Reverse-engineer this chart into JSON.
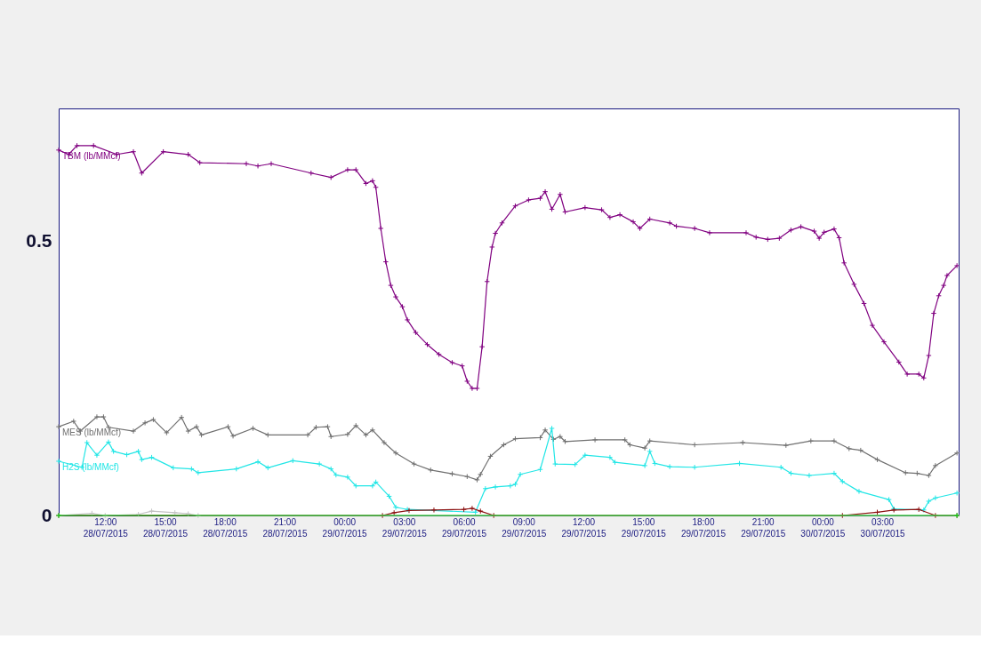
{
  "chart_data": {
    "type": "line",
    "marker": "cross",
    "line_style": "solid",
    "xlim": [
      "2015-07-28T09:40",
      "2015-07-30T06:50"
    ],
    "ylim": [
      0,
      0.743
    ],
    "yticks": [
      0,
      0.5
    ],
    "xticks": [
      {
        "value": "2015-07-28T12:00",
        "label": "12:00 28/07/2015"
      },
      {
        "value": "2015-07-28T15:00",
        "label": "15:00 28/07/2015"
      },
      {
        "value": "2015-07-28T18:00",
        "label": "18:00 28/07/2015"
      },
      {
        "value": "2015-07-28T21:00",
        "label": "21:00 28/07/2015"
      },
      {
        "value": "2015-07-29T00:00",
        "label": "00:00 29/07/2015"
      },
      {
        "value": "2015-07-29T03:00",
        "label": "03:00 29/07/2015"
      },
      {
        "value": "2015-07-29T06:00",
        "label": "06:00 29/07/2015"
      },
      {
        "value": "2015-07-29T09:00",
        "label": "09:00 29/07/2015"
      },
      {
        "value": "2015-07-29T12:00",
        "label": "12:00 29/07/2015"
      },
      {
        "value": "2015-07-29T15:00",
        "label": "15:00 29/07/2015"
      },
      {
        "value": "2015-07-29T18:00",
        "label": "18:00 29/07/2015"
      },
      {
        "value": "2015-07-29T21:00",
        "label": "21:00 29/07/2015"
      },
      {
        "value": "2015-07-30T00:00",
        "label": "00:00 30/07/2015"
      },
      {
        "value": "2015-07-30T03:00",
        "label": "03:00 30/07/2015"
      }
    ],
    "series": [
      {
        "name": "TBM (lb/MMcf)",
        "color": "#800080",
        "x": [
          "2015-07-28T09:40",
          "2015-07-28T10:10",
          "2015-07-28T10:35",
          "2015-07-28T11:25",
          "2015-07-28T12:35",
          "2015-07-28T13:25",
          "2015-07-28T13:50",
          "2015-07-28T14:55",
          "2015-07-28T16:10",
          "2015-07-28T16:45",
          "2015-07-28T19:05",
          "2015-07-28T19:40",
          "2015-07-28T20:20",
          "2015-07-28T22:20",
          "2015-07-28T23:20",
          "2015-07-29T00:10",
          "2015-07-29T00:35",
          "2015-07-29T01:05",
          "2015-07-29T01:25",
          "2015-07-29T01:35",
          "2015-07-29T01:50",
          "2015-07-29T02:05",
          "2015-07-29T02:20",
          "2015-07-29T02:35",
          "2015-07-29T02:55",
          "2015-07-29T03:10",
          "2015-07-29T03:35",
          "2015-07-29T04:10",
          "2015-07-29T04:45",
          "2015-07-29T05:25",
          "2015-07-29T05:55",
          "2015-07-29T06:10",
          "2015-07-29T06:25",
          "2015-07-29T06:40",
          "2015-07-29T06:55",
          "2015-07-29T07:10",
          "2015-07-29T07:25",
          "2015-07-29T07:35",
          "2015-07-29T07:55",
          "2015-07-29T08:35",
          "2015-07-29T09:15",
          "2015-07-29T09:50",
          "2015-07-29T10:05",
          "2015-07-29T10:25",
          "2015-07-29T10:50",
          "2015-07-29T11:05",
          "2015-07-29T12:05",
          "2015-07-29T12:55",
          "2015-07-29T13:20",
          "2015-07-29T13:50",
          "2015-07-29T14:30",
          "2015-07-29T14:50",
          "2015-07-29T15:20",
          "2015-07-29T16:20",
          "2015-07-29T16:40",
          "2015-07-29T17:35",
          "2015-07-29T18:20",
          "2015-07-29T20:10",
          "2015-07-29T20:40",
          "2015-07-29T21:15",
          "2015-07-29T21:50",
          "2015-07-29T22:25",
          "2015-07-29T22:55",
          "2015-07-29T23:35",
          "2015-07-29T23:50",
          "2015-07-30T00:05",
          "2015-07-30T00:35",
          "2015-07-30T00:50",
          "2015-07-30T01:05",
          "2015-07-30T01:35",
          "2015-07-30T02:05",
          "2015-07-30T02:30",
          "2015-07-30T03:05",
          "2015-07-30T03:50",
          "2015-07-30T04:15",
          "2015-07-30T04:50",
          "2015-07-30T05:05",
          "2015-07-30T05:20",
          "2015-07-30T05:35",
          "2015-07-30T05:50",
          "2015-07-30T06:05",
          "2015-07-30T06:15",
          "2015-07-30T06:45"
        ],
        "values": [
          0.667,
          0.659,
          0.675,
          0.675,
          0.659,
          0.664,
          0.625,
          0.664,
          0.659,
          0.644,
          0.642,
          0.638,
          0.642,
          0.625,
          0.617,
          0.631,
          0.631,
          0.606,
          0.611,
          0.599,
          0.524,
          0.463,
          0.42,
          0.399,
          0.381,
          0.357,
          0.334,
          0.312,
          0.294,
          0.279,
          0.273,
          0.245,
          0.232,
          0.232,
          0.308,
          0.427,
          0.49,
          0.515,
          0.534,
          0.565,
          0.576,
          0.579,
          0.591,
          0.559,
          0.586,
          0.554,
          0.562,
          0.558,
          0.544,
          0.549,
          0.536,
          0.524,
          0.541,
          0.534,
          0.528,
          0.524,
          0.516,
          0.516,
          0.508,
          0.504,
          0.506,
          0.521,
          0.527,
          0.519,
          0.506,
          0.517,
          0.523,
          0.507,
          0.461,
          0.422,
          0.387,
          0.347,
          0.317,
          0.28,
          0.258,
          0.258,
          0.251,
          0.292,
          0.369,
          0.401,
          0.42,
          0.438,
          0.456
        ]
      },
      {
        "name": "MES (lb/MMcf)",
        "color": "#707070",
        "x": [
          "2015-07-28T09:40",
          "2015-07-28T10:25",
          "2015-07-28T10:45",
          "2015-07-28T11:35",
          "2015-07-28T11:55",
          "2015-07-28T12:10",
          "2015-07-28T13:25",
          "2015-07-28T14:00",
          "2015-07-28T14:25",
          "2015-07-28T15:05",
          "2015-07-28T15:50",
          "2015-07-28T16:10",
          "2015-07-28T16:35",
          "2015-07-28T16:50",
          "2015-07-28T18:10",
          "2015-07-28T18:25",
          "2015-07-28T19:25",
          "2015-07-28T20:10",
          "2015-07-28T22:10",
          "2015-07-28T22:35",
          "2015-07-28T23:10",
          "2015-07-28T23:20",
          "2015-07-29T00:10",
          "2015-07-29T00:35",
          "2015-07-29T01:05",
          "2015-07-29T01:25",
          "2015-07-29T02:00",
          "2015-07-29T02:35",
          "2015-07-29T03:30",
          "2015-07-29T04:20",
          "2015-07-29T05:25",
          "2015-07-29T06:10",
          "2015-07-29T06:40",
          "2015-07-29T06:50",
          "2015-07-29T07:20",
          "2015-07-29T08:00",
          "2015-07-29T08:35",
          "2015-07-29T09:50",
          "2015-07-29T10:05",
          "2015-07-29T10:30",
          "2015-07-29T10:50",
          "2015-07-29T11:05",
          "2015-07-29T12:35",
          "2015-07-29T14:05",
          "2015-07-29T14:20",
          "2015-07-29T15:05",
          "2015-07-29T15:20",
          "2015-07-29T17:35",
          "2015-07-29T20:00",
          "2015-07-29T22:10",
          "2015-07-29T23:25",
          "2015-07-30T00:35",
          "2015-07-30T01:20",
          "2015-07-30T01:55",
          "2015-07-30T02:45",
          "2015-07-30T04:10",
          "2015-07-30T04:45",
          "2015-07-30T05:20",
          "2015-07-30T05:40",
          "2015-07-30T06:45"
        ],
        "values": [
          0.162,
          0.172,
          0.154,
          0.18,
          0.18,
          0.161,
          0.154,
          0.169,
          0.175,
          0.151,
          0.179,
          0.154,
          0.162,
          0.147,
          0.162,
          0.145,
          0.159,
          0.147,
          0.147,
          0.161,
          0.162,
          0.144,
          0.148,
          0.164,
          0.147,
          0.156,
          0.133,
          0.114,
          0.094,
          0.083,
          0.076,
          0.071,
          0.065,
          0.075,
          0.108,
          0.129,
          0.14,
          0.142,
          0.156,
          0.139,
          0.144,
          0.135,
          0.138,
          0.138,
          0.129,
          0.123,
          0.136,
          0.129,
          0.133,
          0.128,
          0.136,
          0.136,
          0.122,
          0.119,
          0.102,
          0.078,
          0.077,
          0.073,
          0.091,
          0.114
        ]
      },
      {
        "name": "H2S (lb/MMcf)",
        "color": "#22e6e6",
        "x": [
          "2015-07-28T09:40",
          "2015-07-28T10:50",
          "2015-07-28T11:05",
          "2015-07-28T11:35",
          "2015-07-28T12:10",
          "2015-07-28T12:25",
          "2015-07-28T13:05",
          "2015-07-28T13:40",
          "2015-07-28T13:50",
          "2015-07-28T14:20",
          "2015-07-28T15:25",
          "2015-07-28T16:20",
          "2015-07-28T16:40",
          "2015-07-28T18:35",
          "2015-07-28T19:40",
          "2015-07-28T20:10",
          "2015-07-28T21:25",
          "2015-07-28T22:45",
          "2015-07-28T23:20",
          "2015-07-28T23:35",
          "2015-07-29T00:10",
          "2015-07-29T00:35",
          "2015-07-29T01:25",
          "2015-07-29T01:35",
          "2015-07-29T02:15",
          "2015-07-29T02:35",
          "2015-07-29T03:10",
          "2015-07-29T06:35",
          "2015-07-29T07:05",
          "2015-07-29T07:35",
          "2015-07-29T08:20",
          "2015-07-29T08:35",
          "2015-07-29T08:50",
          "2015-07-29T09:50",
          "2015-07-29T10:25",
          "2015-07-29T10:35",
          "2015-07-29T11:35",
          "2015-07-29T12:05",
          "2015-07-29T13:20",
          "2015-07-29T13:35",
          "2015-07-29T15:05",
          "2015-07-29T15:20",
          "2015-07-29T15:35",
          "2015-07-29T16:20",
          "2015-07-29T17:35",
          "2015-07-29T19:50",
          "2015-07-29T21:55",
          "2015-07-29T22:25",
          "2015-07-29T23:20",
          "2015-07-30T00:35",
          "2015-07-30T01:00",
          "2015-07-30T01:50",
          "2015-07-30T03:20",
          "2015-07-30T03:35",
          "2015-07-30T05:05",
          "2015-07-30T05:20",
          "2015-07-30T05:40",
          "2015-07-30T06:45"
        ],
        "values": [
          0.099,
          0.088,
          0.133,
          0.11,
          0.134,
          0.117,
          0.111,
          0.117,
          0.102,
          0.106,
          0.087,
          0.085,
          0.078,
          0.085,
          0.098,
          0.087,
          0.1,
          0.094,
          0.085,
          0.074,
          0.07,
          0.054,
          0.054,
          0.061,
          0.035,
          0.015,
          0.011,
          0.006,
          0.049,
          0.052,
          0.054,
          0.057,
          0.075,
          0.084,
          0.159,
          0.094,
          0.093,
          0.11,
          0.106,
          0.097,
          0.091,
          0.117,
          0.095,
          0.089,
          0.088,
          0.095,
          0.088,
          0.077,
          0.073,
          0.077,
          0.062,
          0.044,
          0.029,
          0.012,
          0.01,
          0.026,
          0.032,
          0.041
        ]
      },
      {
        "color": "#8b1010",
        "x": [
          "2015-07-28T09:40",
          "2015-07-29T01:55",
          "2015-07-29T02:30",
          "2015-07-29T03:15",
          "2015-07-29T04:30",
          "2015-07-29T06:00",
          "2015-07-29T06:25",
          "2015-07-29T06:50",
          "2015-07-29T07:30",
          "2015-07-30T01:00",
          "2015-07-30T02:45",
          "2015-07-30T03:35",
          "2015-07-30T04:50",
          "2015-07-30T05:40",
          "2015-07-30T06:45"
        ],
        "values": [
          0,
          0,
          0.005,
          0.009,
          0.01,
          0.011,
          0.013,
          0.008,
          0,
          0,
          0.006,
          0.01,
          0.011,
          0,
          0
        ]
      },
      {
        "color": "#c4c4c4",
        "x": [
          "2015-07-28T09:40",
          "2015-07-28T11:20",
          "2015-07-28T12:00",
          "2015-07-28T13:40",
          "2015-07-28T14:20",
          "2015-07-28T15:30",
          "2015-07-28T16:10",
          "2015-07-28T16:40",
          "2015-07-30T06:45"
        ],
        "values": [
          0,
          0.004,
          0,
          0.002,
          0.008,
          0.005,
          0.003,
          0,
          0
        ]
      },
      {
        "color": "#00cc00",
        "x": [
          "2015-07-28T09:40",
          "2015-07-30T06:45"
        ],
        "values": [
          0,
          0
        ]
      }
    ]
  }
}
